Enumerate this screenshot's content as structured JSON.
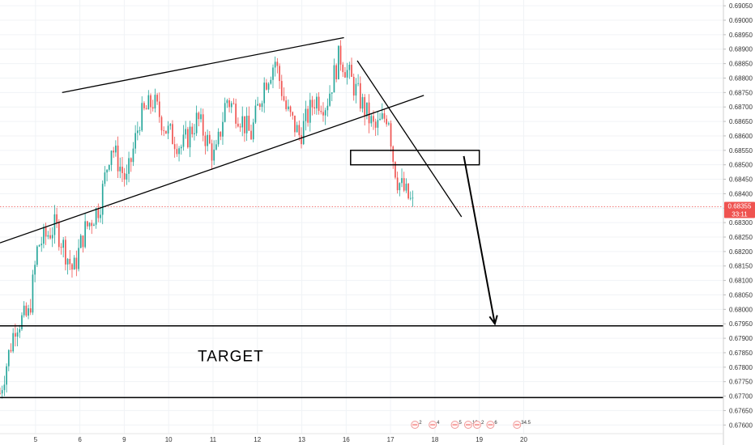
{
  "chart_data": {
    "type": "candlestick",
    "y_axis": {
      "range": [
        0.6757,
        0.6907
      ],
      "step": 0.0005,
      "ticks": [
        "0.69050",
        "0.69000",
        "0.68950",
        "0.68900",
        "0.68850",
        "0.68800",
        "0.68750",
        "0.68700",
        "0.68650",
        "0.68600",
        "0.68550",
        "0.68500",
        "0.68450",
        "0.68400",
        "0.68350",
        "0.68300",
        "0.68250",
        "0.68200",
        "0.68150",
        "0.68100",
        "0.68050",
        "0.68000",
        "0.67950",
        "0.67900",
        "0.67850",
        "0.67800",
        "0.67750",
        "0.67700",
        "0.67650",
        "0.67600"
      ]
    },
    "x_axis": {
      "unit": "day",
      "range": [
        4.2,
        20.5
      ],
      "ticks": [
        {
          "label": "5",
          "x": 5
        },
        {
          "label": "6",
          "x": 6
        },
        {
          "label": "9",
          "x": 7
        },
        {
          "label": "10",
          "x": 8
        },
        {
          "label": "11",
          "x": 9
        },
        {
          "label": "12",
          "x": 10
        },
        {
          "label": "13",
          "x": 11
        },
        {
          "label": "16",
          "x": 12
        },
        {
          "label": "17",
          "x": 13
        },
        {
          "label": "18",
          "x": 14
        },
        {
          "label": "19",
          "x": 15
        },
        {
          "label": "20",
          "x": 16
        }
      ]
    },
    "current_price": {
      "value": 0.68355,
      "label": "0.68355",
      "countdown": "33:11",
      "color": "#ef5350"
    },
    "colors": {
      "up": "#26a69a",
      "down": "#ef5350"
    },
    "candle_path": [
      [
        4.2,
        0.6771
      ],
      [
        4.55,
        0.6795
      ],
      [
        4.85,
        0.6798
      ],
      [
        5.05,
        0.6822
      ],
      [
        5.45,
        0.6829
      ],
      [
        5.85,
        0.6813
      ],
      [
        6.1,
        0.6827
      ],
      [
        6.45,
        0.6836
      ],
      [
        6.7,
        0.6857
      ],
      [
        7.05,
        0.6844
      ],
      [
        7.35,
        0.6866
      ],
      [
        7.65,
        0.6872
      ],
      [
        7.95,
        0.6862
      ],
      [
        8.3,
        0.6856
      ],
      [
        8.65,
        0.6866
      ],
      [
        9.05,
        0.6852
      ],
      [
        9.3,
        0.6873
      ],
      [
        9.6,
        0.6867
      ],
      [
        9.85,
        0.686
      ],
      [
        10.15,
        0.6878
      ],
      [
        10.4,
        0.6886
      ],
      [
        10.65,
        0.6869
      ],
      [
        10.95,
        0.686
      ],
      [
        11.3,
        0.6873
      ],
      [
        11.55,
        0.6871
      ],
      [
        11.85,
        0.6888
      ],
      [
        12.15,
        0.6878
      ],
      [
        12.45,
        0.6868
      ],
      [
        12.65,
        0.6862
      ],
      [
        12.95,
        0.6868
      ],
      [
        13.05,
        0.6853
      ],
      [
        13.15,
        0.6845
      ],
      [
        13.5,
        0.6836
      ]
    ],
    "candle_count": 190,
    "candle_seed": 7,
    "drawings": {
      "upper_channel_line": [
        [
          5.6,
          0.6875
        ],
        [
          11.95,
          0.6894
        ]
      ],
      "lower_channel_line": [
        [
          4.2,
          0.6823
        ],
        [
          13.75,
          0.6874
        ]
      ],
      "descending_trendline": [
        [
          12.25,
          0.6886
        ],
        [
          14.6,
          0.6832
        ]
      ],
      "resistance_box": [
        [
          12.1,
          0.6855
        ],
        [
          15.0,
          0.685
        ]
      ],
      "projection_arrow": [
        [
          14.65,
          0.6853
        ],
        [
          15.35,
          0.6795
        ]
      ],
      "target_zone_top": 0.67943,
      "target_zone_bottom": 0.67695
    },
    "annotations": [
      {
        "text": "TARGET",
        "x": 9.4,
        "y": 0.6782
      }
    ],
    "event_markers": [
      {
        "label": "2",
        "x": 13.55
      },
      {
        "label": "4",
        "x": 13.95
      },
      {
        "label": "5",
        "x": 14.45
      },
      {
        "label": "12",
        "x": 14.75
      },
      {
        "label": "2",
        "x": 14.95
      },
      {
        "label": "6",
        "x": 15.25
      },
      {
        "label": "34.5",
        "x": 15.85
      }
    ]
  }
}
